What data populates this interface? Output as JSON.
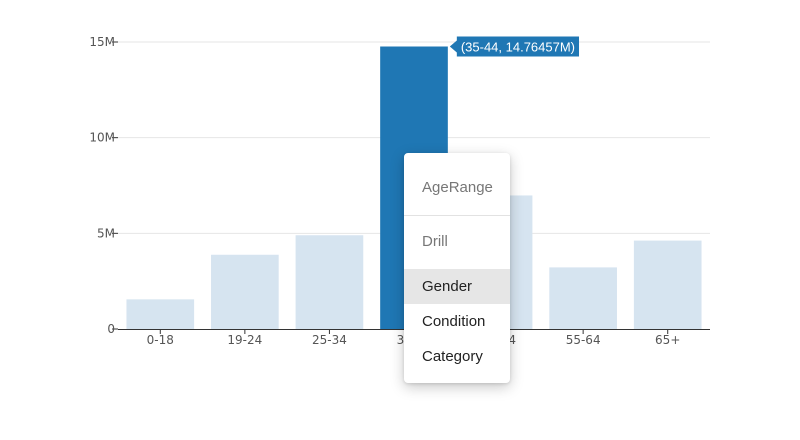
{
  "chart_data": {
    "type": "bar",
    "categories": [
      "0-18",
      "19-24",
      "25-34",
      "35-44",
      "45-54",
      "55-64",
      "65+"
    ],
    "values": [
      1.55,
      3.88,
      4.9,
      14.76457,
      6.98,
      3.22,
      4.62
    ],
    "ylim": [
      0,
      15
    ],
    "y_ticks": [
      0,
      5,
      10,
      15
    ],
    "y_tick_labels": [
      "0",
      "5M",
      "10M",
      "15M"
    ],
    "highlighted_index": 3,
    "colors": {
      "highlight": "#1f77b4",
      "muted": "#d6e4f0",
      "grid": "#e6e6e6",
      "axis": "#333333"
    },
    "grid": true,
    "tooltip": "(35-44, 14.76457M)"
  },
  "context_menu": {
    "header": "AgeRange",
    "section_label": "Drill",
    "items": [
      {
        "label": "Gender",
        "active": true
      },
      {
        "label": "Condition",
        "active": false
      },
      {
        "label": "Category",
        "active": false
      }
    ]
  }
}
